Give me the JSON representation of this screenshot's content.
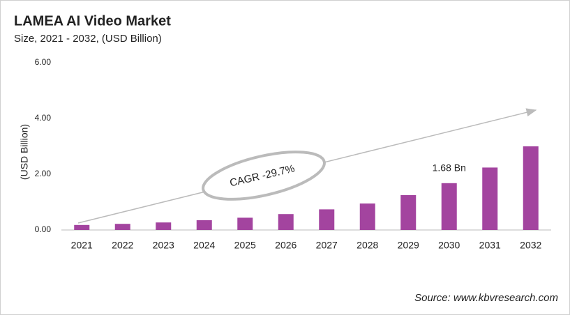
{
  "chart_data": {
    "type": "bar",
    "title": "LAMEA AI Video Market",
    "subtitle": "Size, 2021 - 2032, (USD Billion)",
    "y_label": "(USD Billion)",
    "annotation": "CAGR -29.7%",
    "source": "Source: www.kbvresearch.com",
    "categories": [
      "2021",
      "2022",
      "2023",
      "2024",
      "2025",
      "2026",
      "2027",
      "2028",
      "2029",
      "2030",
      "2031",
      "2032"
    ],
    "values": [
      0.18,
      0.22,
      0.27,
      0.35,
      0.44,
      0.57,
      0.74,
      0.95,
      1.25,
      1.68,
      2.24,
      3.0
    ],
    "value_labels": [
      null,
      null,
      null,
      null,
      null,
      null,
      null,
      null,
      null,
      "1.68 Bn",
      null,
      null
    ],
    "color": "#a3449f",
    "ylim": [
      0,
      6
    ],
    "yticks": [
      {
        "value": 0,
        "label": "0.00"
      },
      {
        "value": 2,
        "label": "2.00"
      },
      {
        "value": 4,
        "label": "4.00"
      },
      {
        "value": 6,
        "label": "6.00"
      }
    ],
    "grid": false
  }
}
